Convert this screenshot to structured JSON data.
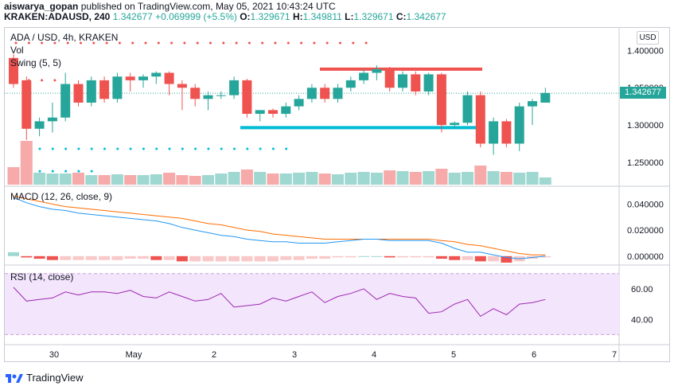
{
  "header": {
    "user": "aiswarya_gopan",
    "published": "published on TradingView.com, May 05, 2021 10:43:24 UTC",
    "symbol": "KRAKEN:ADAUSD, 240",
    "last": "1.342677",
    "change": "+0.069999 (+5.5%)",
    "o_label": "O:",
    "o": "1.329671",
    "h_label": "H:",
    "h": "1.349811",
    "l_label": "L:",
    "l": "1.329671",
    "c_label": "C:",
    "c": "1.342677"
  },
  "legend": {
    "title": "ADA / USD, 4h, KRAKEN",
    "vol": "Vol",
    "swing": "Swing (5, 5)",
    "macd": "MACD (12, 26, close, 9)",
    "rsi": "RSI (14, close)"
  },
  "currency_button": "USD",
  "current_price_tag": "1.342677",
  "footer": {
    "brand": "TradingView"
  },
  "colors": {
    "up": "#26a69a",
    "down": "#ef5350",
    "resistance": "#ef5350",
    "support": "#00bcd4",
    "macd": "#2196f3",
    "signal": "#ff6d00",
    "rsi": "#9c27b0",
    "rsi_band": "#f3e5fc"
  },
  "chart_data": [
    {
      "type": "candlestick",
      "title": "ADA / USD, 4h, KRAKEN",
      "x_ticks": [
        "30",
        "May",
        "2",
        "3",
        "4",
        "5",
        "6",
        "7"
      ],
      "y_ticks": [
        "1.400000",
        "1.350000",
        "1.300000",
        "1.250000"
      ],
      "ylim": [
        1.22,
        1.425
      ],
      "candles": [
        {
          "o": 1.39,
          "h": 1.395,
          "l": 1.35,
          "c": 1.355
        },
        {
          "o": 1.36,
          "h": 1.365,
          "l": 1.28,
          "c": 1.295
        },
        {
          "o": 1.295,
          "h": 1.31,
          "l": 1.285,
          "c": 1.305
        },
        {
          "o": 1.305,
          "h": 1.33,
          "l": 1.29,
          "c": 1.31
        },
        {
          "o": 1.31,
          "h": 1.37,
          "l": 1.305,
          "c": 1.355
        },
        {
          "o": 1.355,
          "h": 1.36,
          "l": 1.325,
          "c": 1.33
        },
        {
          "o": 1.33,
          "h": 1.365,
          "l": 1.325,
          "c": 1.36
        },
        {
          "o": 1.36,
          "h": 1.365,
          "l": 1.33,
          "c": 1.335
        },
        {
          "o": 1.335,
          "h": 1.37,
          "l": 1.33,
          "c": 1.365
        },
        {
          "o": 1.365,
          "h": 1.37,
          "l": 1.345,
          "c": 1.36
        },
        {
          "o": 1.36,
          "h": 1.368,
          "l": 1.35,
          "c": 1.365
        },
        {
          "o": 1.365,
          "h": 1.372,
          "l": 1.355,
          "c": 1.37
        },
        {
          "o": 1.37,
          "h": 1.372,
          "l": 1.34,
          "c": 1.355
        },
        {
          "o": 1.355,
          "h": 1.36,
          "l": 1.32,
          "c": 1.35
        },
        {
          "o": 1.35,
          "h": 1.355,
          "l": 1.325,
          "c": 1.335
        },
        {
          "o": 1.335,
          "h": 1.345,
          "l": 1.32,
          "c": 1.34
        },
        {
          "o": 1.34,
          "h": 1.345,
          "l": 1.335,
          "c": 1.34
        },
        {
          "o": 1.34,
          "h": 1.365,
          "l": 1.335,
          "c": 1.36
        },
        {
          "o": 1.36,
          "h": 1.362,
          "l": 1.31,
          "c": 1.315
        },
        {
          "o": 1.315,
          "h": 1.32,
          "l": 1.305,
          "c": 1.32
        },
        {
          "o": 1.32,
          "h": 1.322,
          "l": 1.31,
          "c": 1.315
        },
        {
          "o": 1.315,
          "h": 1.33,
          "l": 1.31,
          "c": 1.325
        },
        {
          "o": 1.325,
          "h": 1.34,
          "l": 1.32,
          "c": 1.335
        },
        {
          "o": 1.335,
          "h": 1.355,
          "l": 1.33,
          "c": 1.35
        },
        {
          "o": 1.35,
          "h": 1.355,
          "l": 1.33,
          "c": 1.335
        },
        {
          "o": 1.335,
          "h": 1.355,
          "l": 1.33,
          "c": 1.35
        },
        {
          "o": 1.35,
          "h": 1.365,
          "l": 1.345,
          "c": 1.36
        },
        {
          "o": 1.36,
          "h": 1.375,
          "l": 1.355,
          "c": 1.37
        },
        {
          "o": 1.37,
          "h": 1.38,
          "l": 1.36,
          "c": 1.375
        },
        {
          "o": 1.375,
          "h": 1.378,
          "l": 1.345,
          "c": 1.35
        },
        {
          "o": 1.35,
          "h": 1.372,
          "l": 1.345,
          "c": 1.368
        },
        {
          "o": 1.368,
          "h": 1.372,
          "l": 1.34,
          "c": 1.345
        },
        {
          "o": 1.345,
          "h": 1.37,
          "l": 1.34,
          "c": 1.368
        },
        {
          "o": 1.368,
          "h": 1.37,
          "l": 1.29,
          "c": 1.3
        },
        {
          "o": 1.3,
          "h": 1.305,
          "l": 1.295,
          "c": 1.303
        },
        {
          "o": 1.303,
          "h": 1.345,
          "l": 1.3,
          "c": 1.34
        },
        {
          "o": 1.34,
          "h": 1.345,
          "l": 1.27,
          "c": 1.275
        },
        {
          "o": 1.275,
          "h": 1.31,
          "l": 1.26,
          "c": 1.305
        },
        {
          "o": 1.305,
          "h": 1.308,
          "l": 1.27,
          "c": 1.275
        },
        {
          "o": 1.275,
          "h": 1.33,
          "l": 1.265,
          "c": 1.325
        },
        {
          "o": 1.325,
          "h": 1.335,
          "l": 1.3,
          "c": 1.332
        },
        {
          "o": 1.33,
          "h": 1.35,
          "l": 1.33,
          "c": 1.343
        }
      ],
      "resistance": 1.375,
      "support": 1.2965,
      "last": 1.342677
    },
    {
      "type": "bar",
      "name": "Vol",
      "values": [
        22,
        55,
        15,
        14,
        14,
        15,
        12,
        12,
        13,
        12,
        12,
        13,
        15,
        12,
        11,
        12,
        14,
        16,
        19,
        16,
        14,
        14,
        15,
        16,
        14,
        13,
        15,
        16,
        15,
        18,
        17,
        16,
        17,
        20,
        15,
        16,
        24,
        17,
        16,
        15,
        16,
        9
      ]
    },
    {
      "type": "line",
      "title": "MACD (12, 26, close, 9)",
      "y_ticks": [
        "0.040000",
        "0.020000",
        "0.000000"
      ],
      "ylim": [
        -0.005,
        0.05
      ],
      "macd": [
        0.045,
        0.041,
        0.038,
        0.036,
        0.035,
        0.033,
        0.032,
        0.031,
        0.03,
        0.029,
        0.028,
        0.027,
        0.025,
        0.022,
        0.02,
        0.018,
        0.016,
        0.015,
        0.013,
        0.012,
        0.011,
        0.011,
        0.01,
        0.01,
        0.01,
        0.011,
        0.012,
        0.013,
        0.013,
        0.012,
        0.012,
        0.012,
        0.012,
        0.01,
        0.006,
        0.003,
        0.003,
        0.001,
        -0.001,
        -0.002,
        -0.001,
        0.0
      ],
      "signal": [
        0.046,
        0.044,
        0.042,
        0.04,
        0.038,
        0.037,
        0.036,
        0.035,
        0.034,
        0.033,
        0.032,
        0.031,
        0.03,
        0.029,
        0.027,
        0.025,
        0.024,
        0.022,
        0.02,
        0.019,
        0.017,
        0.016,
        0.015,
        0.014,
        0.013,
        0.013,
        0.013,
        0.013,
        0.013,
        0.013,
        0.013,
        0.013,
        0.013,
        0.012,
        0.011,
        0.009,
        0.008,
        0.006,
        0.004,
        0.002,
        0.001,
        0.001
      ],
      "histogram": [
        0.003,
        -0.001,
        -0.002,
        -0.003,
        -0.003,
        -0.003,
        -0.003,
        -0.003,
        -0.003,
        -0.002,
        -0.002,
        -0.003,
        -0.003,
        -0.004,
        -0.004,
        -0.004,
        -0.004,
        -0.004,
        -0.004,
        -0.004,
        -0.004,
        -0.003,
        -0.003,
        -0.002,
        -0.002,
        -0.001,
        -0.001,
        0.0,
        0.0,
        -0.001,
        -0.001,
        -0.001,
        -0.001,
        -0.002,
        -0.003,
        -0.003,
        -0.004,
        -0.004,
        -0.005,
        -0.004,
        -0.002,
        -0.001
      ]
    },
    {
      "type": "line",
      "title": "RSI (14, close)",
      "y_ticks": [
        "60.00",
        "40.00"
      ],
      "ylim": [
        25,
        73
      ],
      "band": [
        30,
        70
      ],
      "values": [
        61,
        52,
        53,
        54,
        58,
        56,
        58,
        58,
        57,
        59,
        55,
        54,
        58,
        55,
        52,
        53,
        57,
        48,
        49,
        50,
        54,
        52,
        55,
        58,
        51,
        55,
        57,
        60,
        53,
        57,
        55,
        54,
        44,
        45,
        50,
        53,
        42,
        47,
        43,
        50,
        51,
        53
      ]
    }
  ]
}
